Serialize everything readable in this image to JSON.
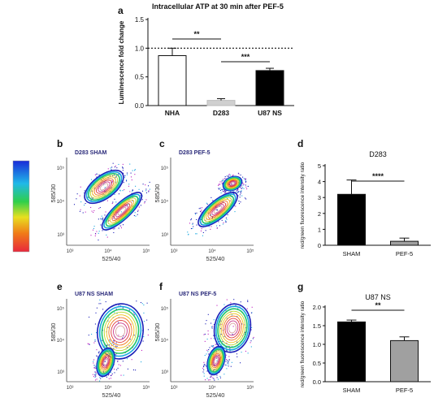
{
  "panel_labels": {
    "a": "a",
    "b": "b",
    "c": "c",
    "d": "d",
    "e": "e",
    "f": "f",
    "g": "g"
  },
  "chart_data": [
    {
      "id": "a",
      "type": "bar",
      "title": "Intracellular ATP at 30 min after PEF-5",
      "ylabel": "Luminescence fold change",
      "xlabel": "",
      "categories": [
        "NHA",
        "D283",
        "U87 NS"
      ],
      "values": [
        0.87,
        0.09,
        0.61
      ],
      "errors": [
        0.13,
        0.03,
        0.04
      ],
      "colors": [
        "#ffffff",
        "#d0d0d0",
        "#000000"
      ],
      "ylim": [
        0,
        1.5
      ],
      "yticks": [
        "0.0",
        "0.5",
        "1.0",
        "1.5"
      ],
      "reference_line": 1.0,
      "significance": [
        {
          "from": 0,
          "to": 1,
          "label": "**"
        },
        {
          "from": 1,
          "to": 2,
          "label": "***"
        }
      ]
    },
    {
      "id": "b",
      "type": "scatter",
      "title": "D283 SHAM",
      "xlabel": "525/40",
      "ylabel": "585/30",
      "xticks": [
        "10³",
        "10⁴",
        "10⁵"
      ],
      "yticks": [
        "10³",
        "10⁴",
        "10⁵"
      ]
    },
    {
      "id": "c",
      "type": "scatter",
      "title": "D283 PEF-5",
      "xlabel": "525/40",
      "ylabel": "585/30",
      "xticks": [
        "10³",
        "10⁴",
        "10⁵"
      ],
      "yticks": [
        "10³",
        "10⁴",
        "10⁵"
      ]
    },
    {
      "id": "d",
      "type": "bar",
      "title": "D283",
      "ylabel": "red/green fluorescence intensity ratio",
      "xlabel": "",
      "categories": [
        "SHAM",
        "PEF-5"
      ],
      "values": [
        3.2,
        0.25
      ],
      "errors": [
        0.9,
        0.2
      ],
      "colors": [
        "#000000",
        "#a0a0a0"
      ],
      "ylim": [
        0,
        5
      ],
      "yticks": [
        "0",
        "1",
        "2",
        "3",
        "4",
        "5"
      ],
      "significance": [
        {
          "from": 0,
          "to": 1,
          "label": "****"
        }
      ]
    },
    {
      "id": "e",
      "type": "scatter",
      "title": "U87 NS SHAM",
      "xlabel": "525/40",
      "ylabel": "585/30",
      "xticks": [
        "10³",
        "10⁴",
        "10⁵"
      ],
      "yticks": [
        "10³",
        "10⁴",
        "10⁵"
      ]
    },
    {
      "id": "f",
      "type": "scatter",
      "title": "U87 NS PEF-5",
      "xlabel": "525/40",
      "ylabel": "585/30",
      "xticks": [
        "10³",
        "10⁴",
        "10⁵"
      ],
      "yticks": [
        "10³",
        "10⁴",
        "10⁵"
      ]
    },
    {
      "id": "g",
      "type": "bar",
      "title": "U87 NS",
      "ylabel": "red/green fluorescence intensity ratio",
      "xlabel": "",
      "categories": [
        "SHAM",
        "PEF-5"
      ],
      "values": [
        1.6,
        1.1
      ],
      "errors": [
        0.05,
        0.1
      ],
      "colors": [
        "#000000",
        "#a0a0a0"
      ],
      "ylim": [
        0,
        2.0
      ],
      "yticks": [
        "0.0",
        "0.5",
        "1.0",
        "1.5",
        "2.0"
      ],
      "significance": [
        {
          "from": 0,
          "to": 1,
          "label": "**"
        }
      ]
    }
  ]
}
